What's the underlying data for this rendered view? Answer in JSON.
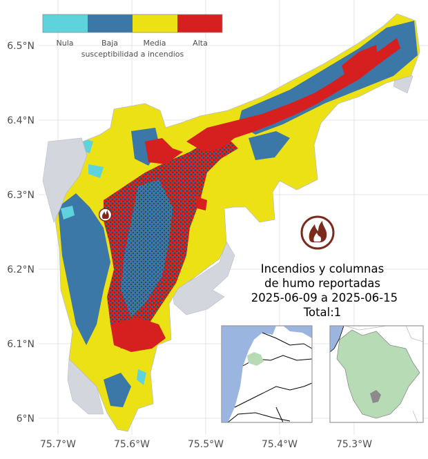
{
  "map": {
    "lat_ticks": [
      "6.5°N",
      "6.4°N",
      "6.3°N",
      "6.2°N",
      "6.1°N",
      "6°N"
    ],
    "lon_ticks": [
      "75.7°W",
      "75.6°W",
      "75.5°W",
      "75.4°W",
      "75.3°W"
    ],
    "lat_range": [
      5.98,
      6.55
    ],
    "lon_range": [
      -75.75,
      -75.21
    ]
  },
  "legend": {
    "title": "susceptibilidad a incendios",
    "classes": [
      {
        "label": "Nula",
        "color": "#5fd3dc"
      },
      {
        "label": "Baja",
        "color": "#3b78a8"
      },
      {
        "label": "Media",
        "color": "#ece114"
      },
      {
        "label": "Alta",
        "color": "#d62020"
      }
    ]
  },
  "colors": {
    "outside_region": "#d3d6dc",
    "dense_cover": "#2f4b4f",
    "fire_icon": "#7b2a1c",
    "sea": "#9ab5e0",
    "inset_highlight": "#b7dbb4"
  },
  "report": {
    "line1": "Incendios y columnas",
    "line2": "de humo reportadas",
    "line3": "2025-06-09 a 2025-06-15",
    "line4": "Total:1"
  },
  "fire_reports": [
    {
      "lon": -75.636,
      "lat": 6.273,
      "icon": "fire-icon"
    }
  ]
}
